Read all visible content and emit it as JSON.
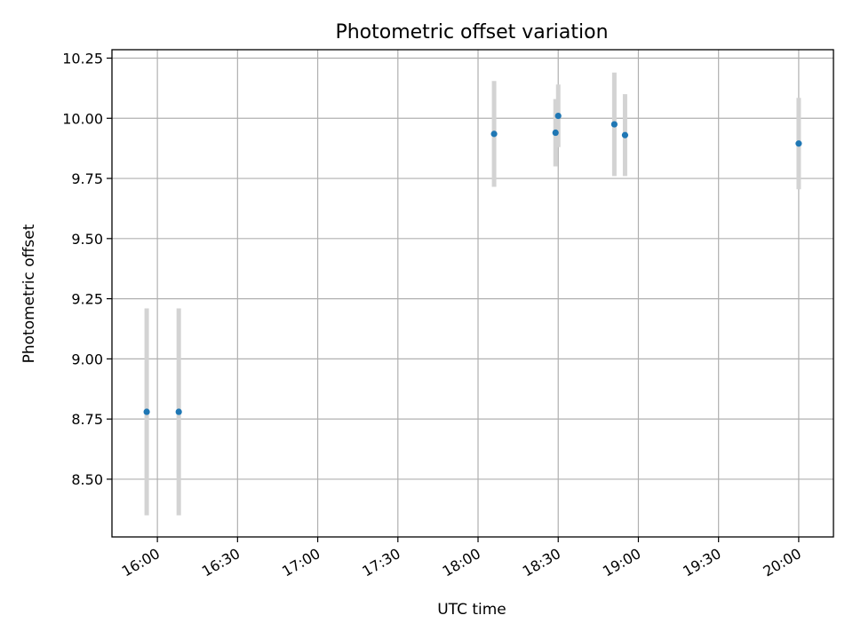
{
  "chart_data": {
    "type": "scatter",
    "title": "Photometric offset variation",
    "xlabel": "UTC time",
    "ylabel": "Photometric offset",
    "grid": true,
    "x_ticks": [
      "16:00",
      "16:30",
      "17:00",
      "17:30",
      "18:00",
      "18:30",
      "19:00",
      "19:30",
      "20:00"
    ],
    "y_ticks": [
      "8.50",
      "8.75",
      "9.00",
      "9.25",
      "9.50",
      "9.75",
      "10.00",
      "10.25"
    ],
    "xlim": [
      "15:43",
      "20:13"
    ],
    "ylim": [
      8.26,
      10.285
    ],
    "colors": {
      "points": "#1f77b4",
      "error_bars": "#d3d3d3"
    },
    "series": [
      {
        "points": [
          {
            "x": "15:56",
            "y": 8.78,
            "err": 0.43
          },
          {
            "x": "16:08",
            "y": 8.78,
            "err": 0.43
          },
          {
            "x": "18:06",
            "y": 9.935,
            "err": 0.22
          },
          {
            "x": "18:29",
            "y": 9.94,
            "err": 0.14
          },
          {
            "x": "18:30",
            "y": 10.01,
            "err": 0.13
          },
          {
            "x": "18:51",
            "y": 9.975,
            "err": 0.215
          },
          {
            "x": "18:55",
            "y": 9.93,
            "err": 0.17
          },
          {
            "x": "20:00",
            "y": 9.895,
            "err": 0.19
          }
        ]
      }
    ]
  }
}
